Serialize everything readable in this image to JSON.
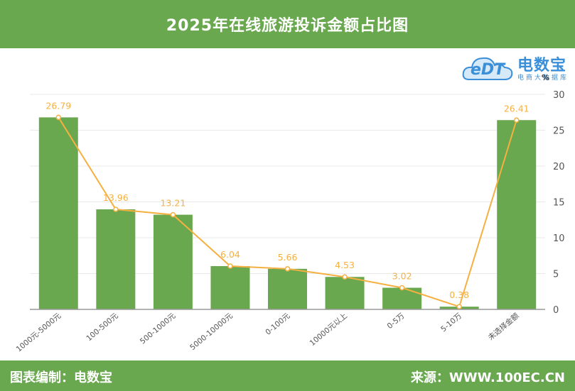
{
  "header": {
    "title": "2025年在线旅游投诉金额占比图"
  },
  "footer": {
    "left": "图表编制：电数宝",
    "right": "来源：WWW.100EC.CN"
  },
  "logo": {
    "name": "电数宝",
    "sub": "电商大数据库",
    "mark": "eDT"
  },
  "colors": {
    "bar": "#6aa84f",
    "line": "#f5b041",
    "header": "#6aa84f"
  },
  "chart_data": {
    "type": "bar",
    "categories": [
      "1000元-5000元",
      "100-500元",
      "500-1000元",
      "5000-10000元",
      "0-100元",
      "10000元以上",
      "0-5万",
      "5-10万",
      "未选择金额"
    ],
    "series": [
      {
        "values": [
          26.79,
          13.96,
          13.21,
          6.04,
          5.66,
          4.53,
          3.02,
          0.38,
          26.41
        ]
      },
      {
        "values": [
          26.79,
          13.96,
          13.21,
          6.04,
          5.66,
          4.53,
          3.02,
          0.38,
          26.41
        ]
      }
    ],
    "y_unit": "%",
    "ylim": [
      0,
      30
    ],
    "yticks": [
      0,
      5,
      10,
      15,
      20,
      25,
      30
    ],
    "y_axis_position": "right",
    "grid": true,
    "legend": "none"
  }
}
